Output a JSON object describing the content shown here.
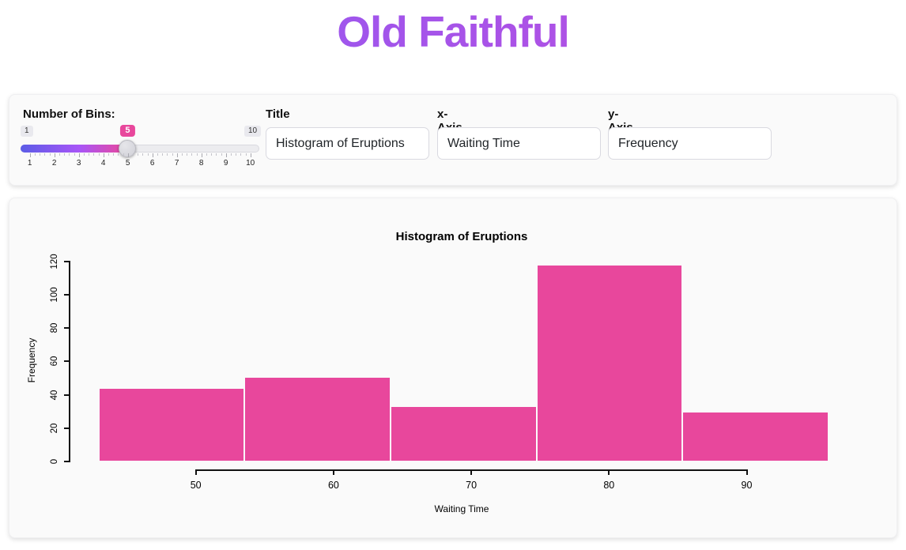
{
  "header": {
    "title": "Old Faithful"
  },
  "controls": {
    "bins_label": "Number of Bins:",
    "bins": {
      "min": 1,
      "max": 10,
      "value": 5,
      "min_label": "1",
      "max_label": "10",
      "value_label": "5",
      "tick_labels": [
        "1",
        "2",
        "3",
        "4",
        "5",
        "6",
        "7",
        "8",
        "9",
        "10"
      ]
    },
    "inputs": [
      {
        "label": "Title",
        "value": "Histogram of Eruptions"
      },
      {
        "label": "x-Axis Label",
        "value": "Waiting Time"
      },
      {
        "label": "y-Axis Label",
        "value": "Frequency"
      }
    ]
  },
  "chart_data": {
    "type": "bar",
    "subtype": "histogram",
    "title": "Histogram of Eruptions",
    "xlabel": "Waiting Time",
    "ylabel": "Frequency",
    "bin_edges": [
      43,
      53.6,
      64.2,
      74.8,
      85.4,
      96
    ],
    "counts": [
      43,
      50,
      32,
      117,
      29
    ],
    "x_ticks": [
      50,
      60,
      70,
      80,
      90
    ],
    "y_ticks": [
      0,
      20,
      40,
      60,
      80,
      100,
      120
    ],
    "xlim": [
      43,
      96
    ],
    "ylim": [
      0,
      120
    ],
    "bar_color": "#e8479c",
    "grid": false,
    "legend": false
  },
  "colors": {
    "accent_pink": "#e8479c",
    "title_gradient_from": "#8b5cf6",
    "title_gradient_to": "#c24bdb",
    "slider_gradient_from": "#5b5ce6",
    "slider_gradient_mid": "#a855f7",
    "slider_gradient_to": "#ec4899"
  }
}
